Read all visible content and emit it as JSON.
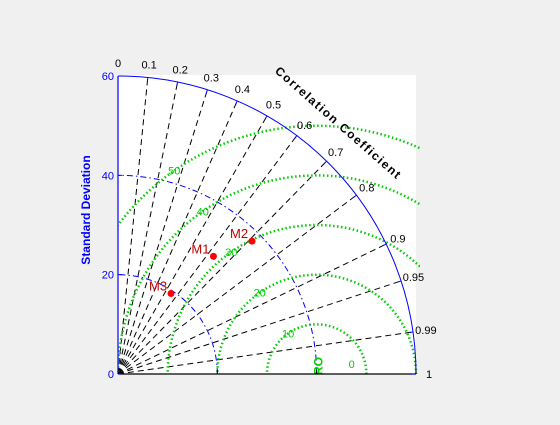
{
  "chart_data": {
    "type": "taylor_diagram",
    "title": "",
    "ylabel": "Standard Deviation",
    "arc_label": "Correlation Coefficient",
    "std_range": [
      0,
      60
    ],
    "std_ticks": [
      0,
      20,
      40,
      60
    ],
    "correlation_ticks": [
      "0",
      "0.1",
      "0.2",
      "0.3",
      "0.4",
      "0.5",
      "0.6",
      "0.7",
      "0.8",
      "0.9",
      "0.95",
      "0.99",
      "1"
    ],
    "correlation_values": [
      0,
      0.1,
      0.2,
      0.3,
      0.4,
      0.5,
      0.6,
      0.7,
      0.8,
      0.9,
      0.95,
      0.99,
      1
    ],
    "reference_std": 40,
    "reference_label": "RO",
    "std_contours": [
      20,
      40
    ],
    "rms_contours": [
      0,
      10,
      20,
      30,
      40,
      50
    ],
    "rms_labels": [
      "0",
      "10",
      "20",
      "30",
      "40",
      "50"
    ],
    "series": [
      {
        "name": "M1",
        "std": 30.5,
        "correlation": 0.63
      },
      {
        "name": "M2",
        "std": 38.0,
        "correlation": 0.71
      },
      {
        "name": "M3",
        "std": 19.4,
        "correlation": 0.55
      }
    ],
    "colors": {
      "axis": "#0000ff",
      "rms": "#00cc00",
      "points": "#ff0000",
      "point_labels": "#c00000",
      "radial_lines": "#000000"
    }
  }
}
